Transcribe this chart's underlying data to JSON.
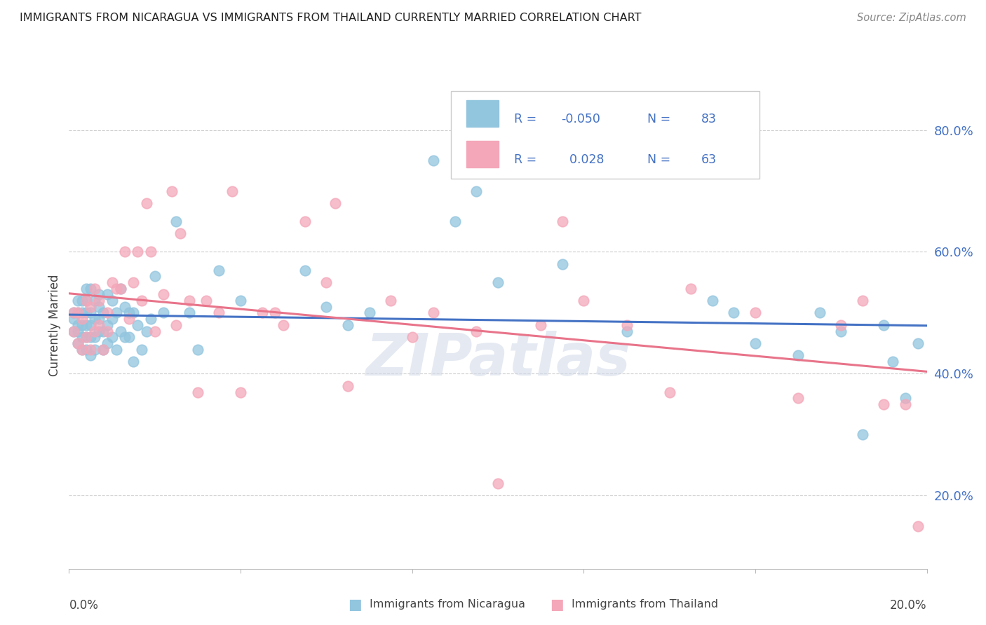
{
  "title": "IMMIGRANTS FROM NICARAGUA VS IMMIGRANTS FROM THAILAND CURRENTLY MARRIED CORRELATION CHART",
  "source": "Source: ZipAtlas.com",
  "ylabel": "Currently Married",
  "right_yticks": [
    "20.0%",
    "40.0%",
    "60.0%",
    "80.0%"
  ],
  "right_ytick_vals": [
    0.2,
    0.4,
    0.6,
    0.8
  ],
  "xlim": [
    0.0,
    0.2
  ],
  "ylim": [
    0.08,
    0.88
  ],
  "r_nicaragua": -0.05,
  "n_nicaragua": 83,
  "r_thailand": 0.028,
  "n_thailand": 63,
  "color_nicaragua": "#92C5DE",
  "color_thailand": "#F4A7B9",
  "color_nicaragua_line": "#4472C4",
  "color_thailand_line": "#E8748A",
  "nicaragua_x": [
    0.001,
    0.001,
    0.001,
    0.002,
    0.002,
    0.002,
    0.002,
    0.002,
    0.003,
    0.003,
    0.003,
    0.003,
    0.003,
    0.004,
    0.004,
    0.004,
    0.004,
    0.004,
    0.004,
    0.005,
    0.005,
    0.005,
    0.005,
    0.005,
    0.006,
    0.006,
    0.006,
    0.006,
    0.007,
    0.007,
    0.007,
    0.007,
    0.008,
    0.008,
    0.008,
    0.009,
    0.009,
    0.009,
    0.01,
    0.01,
    0.01,
    0.011,
    0.011,
    0.012,
    0.012,
    0.013,
    0.013,
    0.014,
    0.014,
    0.015,
    0.015,
    0.016,
    0.017,
    0.018,
    0.019,
    0.02,
    0.022,
    0.025,
    0.028,
    0.03,
    0.035,
    0.04,
    0.055,
    0.06,
    0.065,
    0.07,
    0.085,
    0.09,
    0.095,
    0.1,
    0.115,
    0.13,
    0.15,
    0.155,
    0.16,
    0.17,
    0.175,
    0.18,
    0.185,
    0.19,
    0.192,
    0.195,
    0.198
  ],
  "nicaragua_y": [
    0.47,
    0.49,
    0.5,
    0.45,
    0.47,
    0.5,
    0.52,
    0.48,
    0.44,
    0.46,
    0.48,
    0.5,
    0.52,
    0.44,
    0.46,
    0.48,
    0.5,
    0.52,
    0.54,
    0.43,
    0.46,
    0.48,
    0.5,
    0.54,
    0.44,
    0.46,
    0.49,
    0.52,
    0.47,
    0.49,
    0.51,
    0.53,
    0.44,
    0.47,
    0.5,
    0.45,
    0.48,
    0.53,
    0.46,
    0.49,
    0.52,
    0.44,
    0.5,
    0.47,
    0.54,
    0.46,
    0.51,
    0.46,
    0.5,
    0.42,
    0.5,
    0.48,
    0.44,
    0.47,
    0.49,
    0.56,
    0.5,
    0.65,
    0.5,
    0.44,
    0.57,
    0.52,
    0.57,
    0.51,
    0.48,
    0.5,
    0.75,
    0.65,
    0.7,
    0.55,
    0.58,
    0.47,
    0.52,
    0.5,
    0.45,
    0.43,
    0.5,
    0.47,
    0.3,
    0.48,
    0.42,
    0.36,
    0.45
  ],
  "thailand_x": [
    0.001,
    0.001,
    0.002,
    0.002,
    0.003,
    0.003,
    0.004,
    0.004,
    0.005,
    0.005,
    0.006,
    0.006,
    0.007,
    0.007,
    0.008,
    0.009,
    0.009,
    0.01,
    0.011,
    0.012,
    0.013,
    0.014,
    0.015,
    0.016,
    0.017,
    0.018,
    0.019,
    0.02,
    0.022,
    0.024,
    0.026,
    0.028,
    0.03,
    0.035,
    0.04,
    0.045,
    0.05,
    0.055,
    0.06,
    0.065,
    0.08,
    0.095,
    0.1,
    0.11,
    0.12,
    0.13,
    0.14,
    0.145,
    0.16,
    0.17,
    0.18,
    0.185,
    0.19,
    0.195,
    0.198,
    0.115,
    0.025,
    0.032,
    0.038,
    0.048,
    0.062,
    0.075,
    0.085
  ],
  "thailand_y": [
    0.47,
    0.5,
    0.45,
    0.5,
    0.44,
    0.49,
    0.46,
    0.52,
    0.44,
    0.51,
    0.47,
    0.54,
    0.48,
    0.52,
    0.44,
    0.5,
    0.47,
    0.55,
    0.54,
    0.54,
    0.6,
    0.49,
    0.55,
    0.6,
    0.52,
    0.68,
    0.6,
    0.47,
    0.53,
    0.7,
    0.63,
    0.52,
    0.37,
    0.5,
    0.37,
    0.5,
    0.48,
    0.65,
    0.55,
    0.38,
    0.46,
    0.47,
    0.22,
    0.48,
    0.52,
    0.48,
    0.37,
    0.54,
    0.5,
    0.36,
    0.48,
    0.52,
    0.35,
    0.35,
    0.15,
    0.65,
    0.48,
    0.52,
    0.7,
    0.5,
    0.68,
    0.52,
    0.5
  ]
}
